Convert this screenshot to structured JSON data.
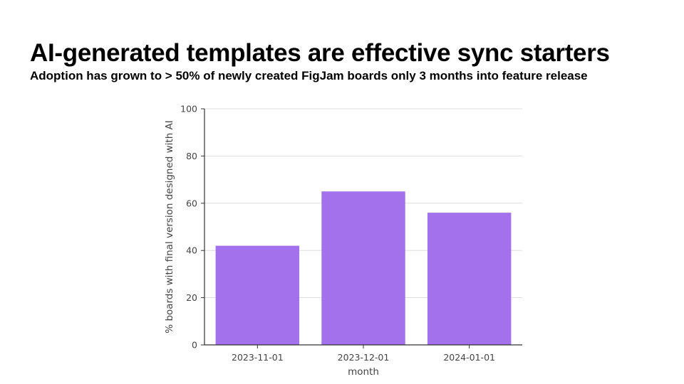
{
  "slide": {
    "title": "AI-generated templates are effective sync starters",
    "subtitle": "Adoption has grown to > 50% of newly created FigJam boards only 3 months into feature release"
  },
  "colors": {
    "bar": "#a371eb",
    "grid": "#dddddd",
    "axis": "#333333"
  },
  "chart_data": {
    "type": "bar",
    "categories": [
      "2023-11-01",
      "2023-12-01",
      "2024-01-01"
    ],
    "values": [
      42,
      65,
      56
    ],
    "xlabel": "month",
    "ylabel": "% boards with final version designed with AI",
    "ylim": [
      0,
      100
    ],
    "yticks": [
      0,
      20,
      40,
      60,
      80,
      100
    ],
    "grid": true
  }
}
